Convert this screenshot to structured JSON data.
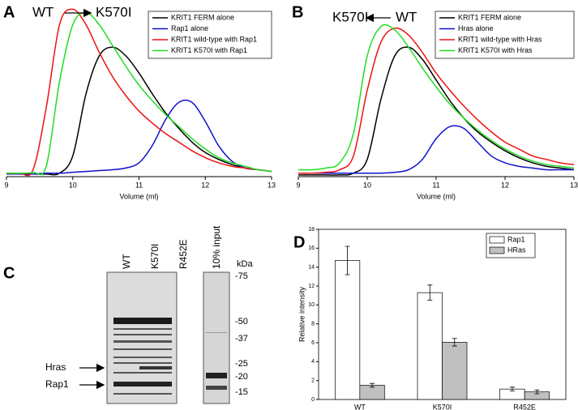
{
  "chart_data": [
    {
      "type": "line",
      "panel": "A",
      "annotations": [
        "WT",
        "K570I"
      ],
      "xlabel": "Volume (ml)",
      "x": [
        9,
        9.2,
        9.4,
        9.6,
        9.8,
        10,
        10.2,
        10.4,
        10.6,
        10.8,
        11,
        11.2,
        11.4,
        11.6,
        11.8,
        12,
        12.2,
        12.4,
        12.6,
        12.8,
        13
      ],
      "xlim": [
        9,
        13
      ],
      "xticks": [
        9,
        10,
        11,
        12,
        13
      ],
      "ylim": [
        0,
        100
      ],
      "legend": "top-right",
      "series": [
        {
          "name": "KRIT1 FERM alone",
          "color": "#000000",
          "values": [
            1.5,
            1.5,
            1.5,
            1.5,
            2,
            12,
            48,
            70,
            75,
            70,
            60,
            48,
            37,
            28,
            20,
            14,
            10,
            7,
            5,
            4,
            3
          ]
        },
        {
          "name": "Rap1 alone",
          "color": "#1010cc",
          "values": [
            1.5,
            1.5,
            1.5,
            2,
            2,
            2.5,
            3,
            3.5,
            4,
            5,
            8,
            18,
            33,
            43,
            43,
            32,
            18,
            9,
            5,
            4,
            3
          ]
        },
        {
          "name": "KRIT1 wild-type with Rap1",
          "color": "#ee1111",
          "values": [
            2,
            2,
            4,
            40,
            88,
            97,
            88,
            72,
            58,
            47,
            38,
            31,
            25,
            20,
            15,
            11,
            8,
            6,
            5,
            4,
            3
          ]
        },
        {
          "name": "KRIT1 K570I with Rap1",
          "color": "#22dd22",
          "values": [
            2,
            2,
            2.5,
            6,
            55,
            88,
            95,
            88,
            76,
            64,
            53,
            44,
            36,
            29,
            22,
            16,
            11,
            8,
            6,
            4,
            3
          ]
        }
      ]
    },
    {
      "type": "line",
      "panel": "B",
      "annotations": [
        "K570I",
        "WT"
      ],
      "xlabel": "Volume (ml)",
      "x": [
        9,
        9.2,
        9.4,
        9.6,
        9.8,
        10,
        10.2,
        10.4,
        10.6,
        10.8,
        11,
        11.2,
        11.4,
        11.6,
        11.8,
        12,
        12.2,
        12.4,
        12.6,
        12.8,
        13
      ],
      "xlim": [
        9,
        13
      ],
      "xticks": [
        9,
        10,
        11,
        12,
        13
      ],
      "ylim": [
        0,
        100
      ],
      "legend": "top-right",
      "series": [
        {
          "name": "KRIT1 FERM alone",
          "color": "#000000",
          "values": [
            1,
            1,
            1,
            1,
            2,
            10,
            45,
            70,
            75,
            68,
            56,
            44,
            34,
            26,
            20,
            15,
            11,
            8,
            6,
            5,
            4
          ]
        },
        {
          "name": "Hras alone",
          "color": "#1010cc",
          "values": [
            2,
            2,
            2,
            2,
            2,
            2,
            2,
            2.5,
            4,
            10,
            22,
            29,
            28,
            20,
            12,
            8,
            6,
            5,
            4,
            4,
            4
          ]
        },
        {
          "name": "KRIT1 wild-type with Hras",
          "color": "#ee1111",
          "values": [
            2,
            2,
            2.5,
            4,
            12,
            50,
            78,
            86,
            82,
            72,
            60,
            50,
            41,
            33,
            26,
            20,
            16,
            12,
            10,
            8,
            7
          ]
        },
        {
          "name": "KRIT1 K570I with Hras",
          "color": "#22dd22",
          "values": [
            4,
            4,
            5,
            8,
            25,
            70,
            87,
            85,
            75,
            63,
            52,
            42,
            34,
            27,
            21,
            16,
            12,
            9,
            7,
            6,
            5
          ]
        }
      ]
    },
    {
      "type": "bar",
      "panel": "D",
      "ylabel": "Relative intensity",
      "categories": [
        "WT",
        "K570I",
        "R452E"
      ],
      "ylim": [
        0,
        18
      ],
      "yticks": [
        0,
        2,
        4,
        6,
        8,
        10,
        12,
        14,
        16,
        18
      ],
      "legend": "top-right",
      "series": [
        {
          "name": "Rap1",
          "color": "#ffffff",
          "values": [
            14.7,
            11.3,
            1.1
          ],
          "errors": [
            1.5,
            0.8,
            0.2
          ]
        },
        {
          "name": "HRas",
          "color": "#c0c0c0",
          "values": [
            1.5,
            6.05,
            0.8
          ],
          "errors": [
            0.2,
            0.4,
            0.2
          ]
        }
      ]
    }
  ],
  "gel": {
    "panel": "C",
    "lanes": [
      "WT",
      "K570I",
      "R452E"
    ],
    "input_label": "10% input",
    "unit": "kDa",
    "markers": [
      "-75",
      "-50",
      "-37",
      "-25",
      "-20",
      "-15"
    ],
    "arrows": [
      "Hras",
      "Rap1"
    ]
  }
}
